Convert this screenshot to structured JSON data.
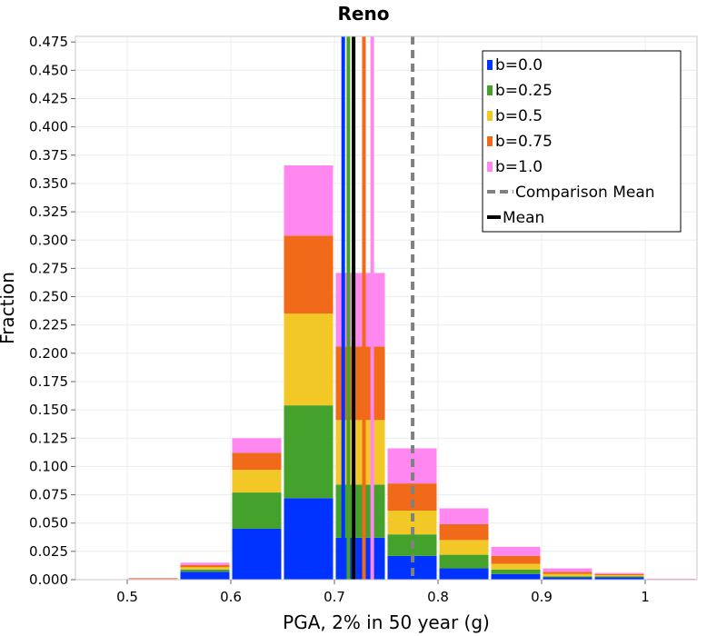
{
  "chart_data": {
    "type": "bar",
    "stacked": true,
    "title": "Reno",
    "xlabel": "PGA, 2% in 50 year (g)",
    "ylabel": "Fraction",
    "xlim": [
      0.45,
      1.05
    ],
    "ylim": [
      0,
      0.48
    ],
    "x_ticks": [
      0.5,
      0.6,
      0.7,
      0.8,
      0.9,
      1
    ],
    "x_tick_labels": [
      "0.5",
      "0.6",
      "0.7",
      "0.8",
      "0.9",
      "1"
    ],
    "y_ticks": [
      0,
      0.025,
      0.05,
      0.075,
      0.1,
      0.125,
      0.15,
      0.175,
      0.2,
      0.225,
      0.25,
      0.275,
      0.3,
      0.325,
      0.35,
      0.375,
      0.4,
      0.425,
      0.45,
      0.475
    ],
    "y_tick_labels": [
      "0.000",
      "0.025",
      "0.050",
      "0.075",
      "0.100",
      "0.125",
      "0.150",
      "0.175",
      "0.200",
      "0.225",
      "0.250",
      "0.275",
      "0.300",
      "0.325",
      "0.350",
      "0.375",
      "0.400",
      "0.425",
      "0.450",
      "0.475"
    ],
    "bin_width": 0.05,
    "bin_centers": [
      0.525,
      0.575,
      0.625,
      0.675,
      0.725,
      0.775,
      0.825,
      0.875,
      0.925,
      0.975,
      1.025
    ],
    "series": [
      {
        "name": "b=0.0",
        "color": "#0033ff",
        "values": [
          0.0003,
          0.007,
          0.045,
          0.072,
          0.037,
          0.021,
          0.01,
          0.005,
          0.002,
          0.002,
          0.0003
        ]
      },
      {
        "name": "b=0.25",
        "color": "#44a12b",
        "values": [
          0.0003,
          0.002,
          0.032,
          0.082,
          0.047,
          0.019,
          0.012,
          0.004,
          0.001,
          0.001,
          0.0002
        ]
      },
      {
        "name": "b=0.5",
        "color": "#f2c827",
        "values": [
          0.0003,
          0.002,
          0.02,
          0.081,
          0.057,
          0.021,
          0.013,
          0.005,
          0.002,
          0.001,
          0.0002
        ]
      },
      {
        "name": "b=0.75",
        "color": "#f06a19",
        "values": [
          0.0003,
          0.002,
          0.015,
          0.069,
          0.065,
          0.024,
          0.014,
          0.007,
          0.002,
          0.001,
          0.0001
        ]
      },
      {
        "name": "b=1.0",
        "color": "#ff88f0",
        "values": [
          0.0003,
          0.002,
          0.013,
          0.062,
          0.065,
          0.031,
          0.014,
          0.008,
          0.003,
          0.001,
          0.0001
        ]
      }
    ],
    "mean_lines": [
      {
        "series": "b=0.0",
        "x": 0.7085,
        "color": "#0033ff"
      },
      {
        "series": "b=0.25",
        "x": 0.7135,
        "color": "#44a12b"
      },
      {
        "series": "b=0.5",
        "x": 0.7185,
        "color": "#f2c827"
      },
      {
        "series": "b=0.75",
        "x": 0.7285,
        "color": "#f06a19"
      },
      {
        "series": "b=1.0",
        "x": 0.7365,
        "color": "#ff88f0"
      }
    ],
    "mean": {
      "name": "Mean",
      "x": 0.7185,
      "color": "#000000"
    },
    "comparison_mean": {
      "name": "Comparison Mean",
      "x": 0.7755,
      "color": "#808080",
      "style": "dashed"
    },
    "legend": {
      "position": "top-right",
      "entries": [
        {
          "label": "b=0.0",
          "kind": "box",
          "color": "#0033ff"
        },
        {
          "label": "b=0.25",
          "kind": "box",
          "color": "#44a12b"
        },
        {
          "label": "b=0.5",
          "kind": "box",
          "color": "#f2c827"
        },
        {
          "label": "b=0.75",
          "kind": "box",
          "color": "#f06a19"
        },
        {
          "label": "b=1.0",
          "kind": "box",
          "color": "#ff88f0"
        },
        {
          "label": "Comparison Mean",
          "kind": "dashed",
          "color": "#808080"
        },
        {
          "label": "Mean",
          "kind": "line",
          "color": "#000000"
        }
      ]
    },
    "grid": true
  }
}
